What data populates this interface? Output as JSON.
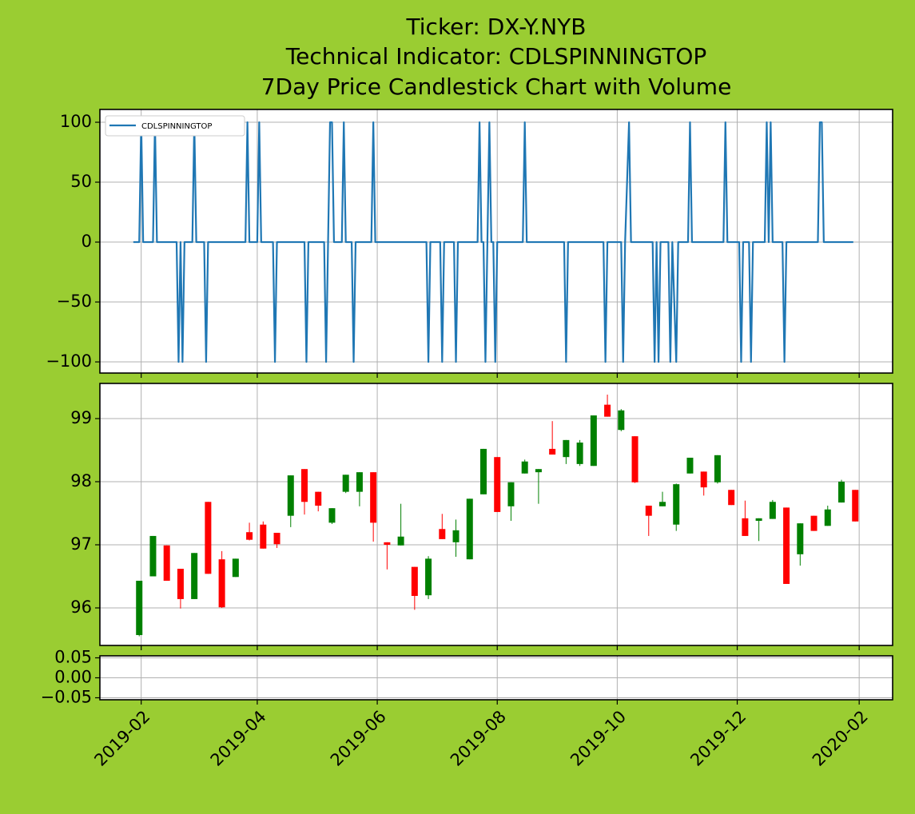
{
  "chart_data": [
    {
      "type": "line",
      "title": [
        "Ticker: DX-Y.NYB",
        "Technical Indicator: CDLSPINNINGTOP",
        "7Day Price Candlestick Chart with Volume"
      ],
      "legend": "upper left",
      "grid": true,
      "ylim": [
        -109.3,
        110.7
      ],
      "yticks": [
        {
          "value": -100,
          "label": "−100"
        },
        {
          "value": -50,
          "label": "−50"
        },
        0,
        50,
        100
      ],
      "series": [
        {
          "name": "CDLSPINNINGTOP",
          "color": "#1f77b4",
          "x": [
            "2019-01-28",
            "2019-01-31",
            "2019-02-01",
            "2019-02-02",
            "2019-02-07",
            "2019-02-08",
            "2019-02-09",
            "2019-02-19",
            "2019-02-20",
            "2019-02-21",
            "2019-02-22",
            "2019-02-23",
            "2019-02-27",
            "2019-02-28",
            "2019-03-01",
            "2019-03-05",
            "2019-03-06",
            "2019-03-07",
            "2019-03-26",
            "2019-03-27",
            "2019-03-28",
            "2019-04-01",
            "2019-04-02",
            "2019-04-03",
            "2019-04-09",
            "2019-04-10",
            "2019-04-11",
            "2019-04-25",
            "2019-04-26",
            "2019-04-27",
            "2019-05-05",
            "2019-05-06",
            "2019-05-07",
            "2019-05-08",
            "2019-05-09",
            "2019-05-10",
            "2019-05-14",
            "2019-05-15",
            "2019-05-16",
            "2019-05-19",
            "2019-05-20",
            "2019-05-21",
            "2019-05-29",
            "2019-05-30",
            "2019-05-31",
            "2019-06-26",
            "2019-06-27",
            "2019-06-28",
            "2019-07-03",
            "2019-07-04",
            "2019-07-05",
            "2019-07-10",
            "2019-07-11",
            "2019-07-12",
            "2019-07-22",
            "2019-07-23",
            "2019-07-24",
            "2019-07-25",
            "2019-07-26",
            "2019-07-27",
            "2019-07-28",
            "2019-07-29",
            "2019-07-30",
            "2019-07-31",
            "2019-08-01",
            "2019-08-14",
            "2019-08-15",
            "2019-08-16",
            "2019-09-04",
            "2019-09-05",
            "2019-09-06",
            "2019-09-24",
            "2019-09-25",
            "2019-09-26",
            "2019-10-03",
            "2019-10-04",
            "2019-10-05",
            "2019-10-07",
            "2019-10-08",
            "2019-10-19",
            "2019-10-20",
            "2019-10-21",
            "2019-10-22",
            "2019-10-23",
            "2019-10-27",
            "2019-10-28",
            "2019-10-29",
            "2019-10-31",
            "2019-11-01",
            "2019-11-06",
            "2019-11-07",
            "2019-11-08",
            "2019-11-24",
            "2019-11-25",
            "2019-11-26",
            "2019-12-02",
            "2019-12-03",
            "2019-12-04",
            "2019-12-07",
            "2019-12-08",
            "2019-12-09",
            "2019-12-15",
            "2019-12-16",
            "2019-12-17",
            "2019-12-18",
            "2019-12-19",
            "2019-12-24",
            "2019-12-25",
            "2019-12-26",
            "2020-01-11",
            "2020-01-12",
            "2020-01-13",
            "2020-01-14",
            "2020-01-29"
          ],
          "values": [
            0,
            0,
            100,
            0,
            0,
            100,
            0,
            0,
            -100,
            0,
            -100,
            0,
            0,
            100,
            0,
            0,
            -100,
            0,
            0,
            100,
            0,
            0,
            100,
            0,
            0,
            -100,
            0,
            0,
            -100,
            0,
            0,
            -100,
            0,
            100,
            100,
            0,
            0,
            100,
            0,
            0,
            -100,
            0,
            0,
            100,
            0,
            0,
            -100,
            0,
            0,
            -100,
            0,
            0,
            -100,
            0,
            0,
            100,
            0,
            0,
            -100,
            0,
            100,
            0,
            0,
            -100,
            0,
            0,
            100,
            0,
            0,
            -100,
            0,
            0,
            -100,
            0,
            0,
            -100,
            0,
            100,
            0,
            0,
            -100,
            0,
            -100,
            0,
            0,
            -100,
            0,
            -100,
            0,
            0,
            100,
            0,
            0,
            100,
            0,
            0,
            -100,
            0,
            0,
            -100,
            0,
            0,
            100,
            0,
            100,
            0,
            0,
            -100,
            0,
            0,
            100,
            100,
            0,
            0
          ]
        }
      ]
    },
    {
      "type": "candlestick",
      "grid": true,
      "up_color": "#008000",
      "down_color": "#ff0000",
      "ylim": [
        95.405,
        99.557
      ],
      "yticks": [
        96,
        97,
        98,
        99
      ],
      "x": [
        "2019-01-31",
        "2019-02-07",
        "2019-02-14",
        "2019-02-21",
        "2019-02-28",
        "2019-03-07",
        "2019-03-14",
        "2019-03-21",
        "2019-03-28",
        "2019-04-04",
        "2019-04-11",
        "2019-04-18",
        "2019-04-25",
        "2019-05-02",
        "2019-05-09",
        "2019-05-16",
        "2019-05-23",
        "2019-05-30",
        "2019-06-06",
        "2019-06-13",
        "2019-06-20",
        "2019-06-27",
        "2019-07-04",
        "2019-07-11",
        "2019-07-18",
        "2019-07-25",
        "2019-08-01",
        "2019-08-08",
        "2019-08-15",
        "2019-08-22",
        "2019-08-29",
        "2019-09-05",
        "2019-09-12",
        "2019-09-19",
        "2019-09-26",
        "2019-10-03",
        "2019-10-10",
        "2019-10-17",
        "2019-10-24",
        "2019-10-31",
        "2019-11-07",
        "2019-11-14",
        "2019-11-21",
        "2019-11-28",
        "2019-12-05",
        "2019-12-12",
        "2019-12-19",
        "2019-12-26",
        "2020-01-02",
        "2020-01-09",
        "2020-01-16",
        "2020-01-23",
        "2020-01-30"
      ],
      "open": [
        95.57,
        96.5,
        96.99,
        96.62,
        96.14,
        97.68,
        96.77,
        96.49,
        97.2,
        97.32,
        97.19,
        97.46,
        98.2,
        97.84,
        97.35,
        97.84,
        97.84,
        98.15,
        97.04,
        96.99,
        96.65,
        96.2,
        97.25,
        97.04,
        96.77,
        97.8,
        98.39,
        97.61,
        98.13,
        98.15,
        98.52,
        98.39,
        98.28,
        98.25,
        99.22,
        98.82,
        98.72,
        97.62,
        97.61,
        97.32,
        98.13,
        98.16,
        97.99,
        97.87,
        97.42,
        97.38,
        97.41,
        97.59,
        96.85,
        97.46,
        97.3,
        97.67,
        97.87
      ],
      "high": [
        96.43,
        97.14,
        96.99,
        96.62,
        96.87,
        97.68,
        96.9,
        96.78,
        97.35,
        97.37,
        97.19,
        98.1,
        98.2,
        97.84,
        97.58,
        98.11,
        98.15,
        98.15,
        97.04,
        97.65,
        96.65,
        96.82,
        97.49,
        97.4,
        97.73,
        98.52,
        98.39,
        97.99,
        98.35,
        98.2,
        98.96,
        98.66,
        98.66,
        99.05,
        99.38,
        99.15,
        98.72,
        97.62,
        97.84,
        97.97,
        98.38,
        98.16,
        98.42,
        97.87,
        97.7,
        97.42,
        97.71,
        97.59,
        97.34,
        97.46,
        97.62,
        98.03,
        97.87
      ],
      "low": [
        95.55,
        96.5,
        96.43,
        95.99,
        96.14,
        96.54,
        96.0,
        96.49,
        97.07,
        96.94,
        96.95,
        97.28,
        97.48,
        97.53,
        97.33,
        97.82,
        97.61,
        97.05,
        96.61,
        96.99,
        95.97,
        96.14,
        97.09,
        96.81,
        96.77,
        97.8,
        97.52,
        97.38,
        98.13,
        97.65,
        98.43,
        98.28,
        98.25,
        98.25,
        99.03,
        98.8,
        97.98,
        97.14,
        97.61,
        97.22,
        98.13,
        97.78,
        97.97,
        97.63,
        97.14,
        97.06,
        97.41,
        96.38,
        96.67,
        97.22,
        97.3,
        97.67,
        97.37
      ],
      "close": [
        96.43,
        97.14,
        96.43,
        96.14,
        96.87,
        96.54,
        96.01,
        96.78,
        97.08,
        96.94,
        97.01,
        98.1,
        97.68,
        97.62,
        97.58,
        98.11,
        98.15,
        97.35,
        97.0,
        97.13,
        96.19,
        96.78,
        97.09,
        97.23,
        97.73,
        98.52,
        97.52,
        97.99,
        98.32,
        98.2,
        98.43,
        98.66,
        98.62,
        99.05,
        99.03,
        99.13,
        97.99,
        97.46,
        97.68,
        97.96,
        98.38,
        97.91,
        98.42,
        97.63,
        97.14,
        97.42,
        97.68,
        96.38,
        97.34,
        97.22,
        97.56,
        98.0,
        97.37
      ]
    },
    {
      "type": "bar",
      "grid": true,
      "ylim": [
        -0.055,
        0.055
      ],
      "yticks": [
        {
          "value": -0.05,
          "label": "−0.05"
        },
        {
          "value": 0,
          "label": "0.00"
        },
        0.05
      ],
      "xlim": [
        "2019-01-11",
        "2020-02-18"
      ],
      "xticks": [
        {
          "value": "2019-02-01",
          "label": "2019-02"
        },
        {
          "value": "2019-04-01",
          "label": "2019-04"
        },
        {
          "value": "2019-06-01",
          "label": "2019-06"
        },
        {
          "value": "2019-08-01",
          "label": "2019-08"
        },
        {
          "value": "2019-10-01",
          "label": "2019-10"
        },
        {
          "value": "2019-12-01",
          "label": "2019-12"
        },
        {
          "value": "2020-02-01",
          "label": "2020-02"
        }
      ]
    }
  ]
}
